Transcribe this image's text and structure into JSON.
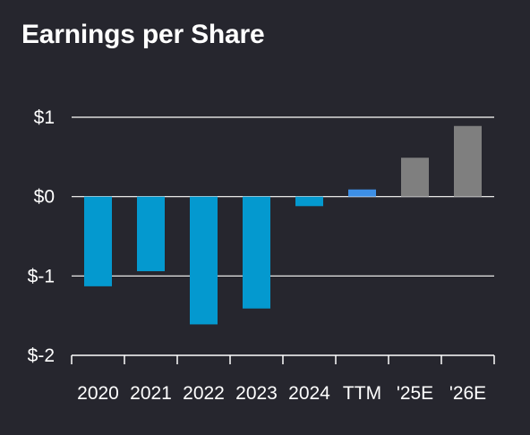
{
  "chart_data": {
    "type": "bar",
    "title": "Earnings per Share",
    "xlabel": "",
    "ylabel": "",
    "categories": [
      "2020",
      "2021",
      "2022",
      "2023",
      "2024",
      "TTM",
      "'25E",
      "'26E"
    ],
    "values": [
      -1.13,
      -0.94,
      -1.61,
      -1.41,
      -0.12,
      0.09,
      0.49,
      0.89
    ],
    "bar_colors": [
      "#0499cf",
      "#0499cf",
      "#0499cf",
      "#0499cf",
      "#0499cf",
      "#3d8fe6",
      "#7f7f7f",
      "#7f7f7f"
    ],
    "ylim": [
      -2,
      1
    ],
    "yticks": [
      1,
      0,
      -1,
      -2
    ],
    "ytick_labels": [
      "$1",
      "$0",
      "$-1",
      "$-2"
    ],
    "grid": true,
    "legend": "none"
  },
  "colors": {
    "background": "#26262e",
    "text": "#ffffff",
    "grid": "#ffffff"
  }
}
